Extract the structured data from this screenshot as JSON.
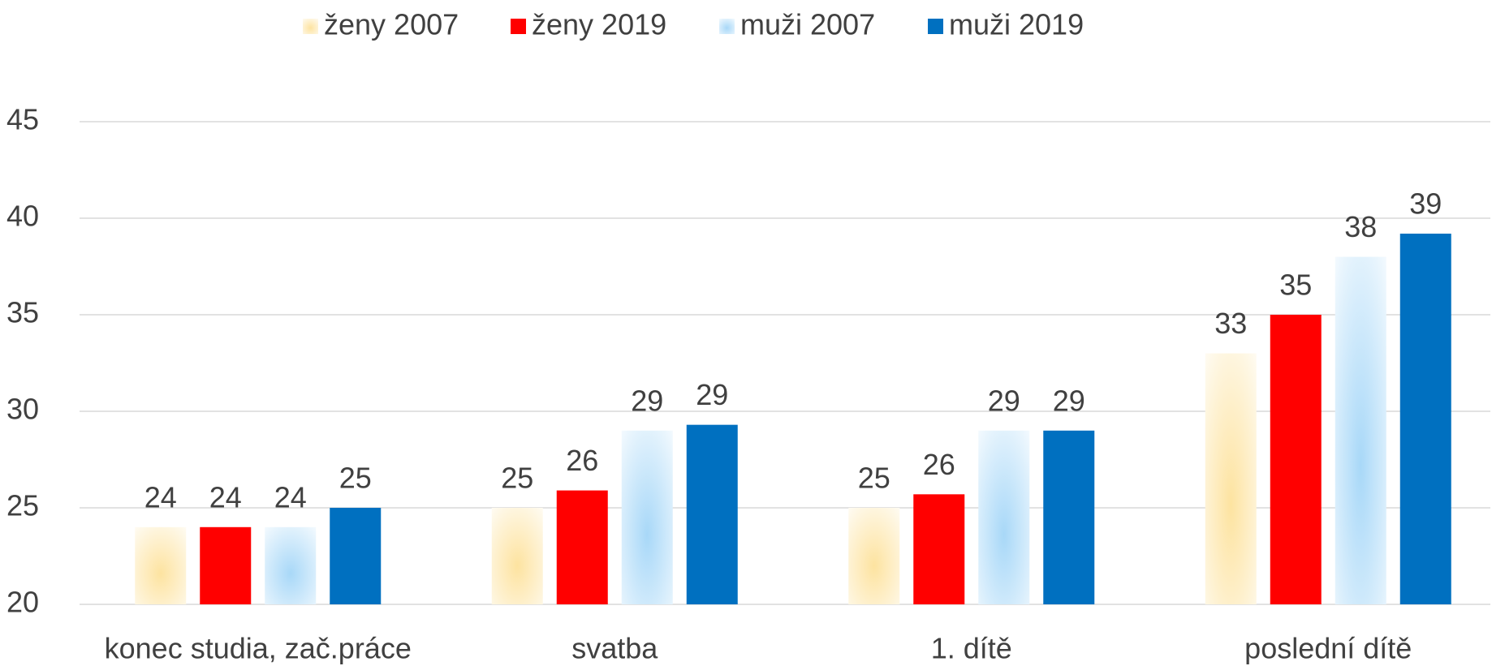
{
  "chart_data": {
    "type": "bar",
    "categories": [
      "konec studia, zač.práce",
      "svatba",
      "1. dítě",
      "poslední dítě"
    ],
    "series": [
      {
        "name": "ženy 2007",
        "color": "#fde3a0",
        "values": [
          24.0,
          25.0,
          25.0,
          33.0
        ],
        "value_labels": [
          "24",
          "25",
          "25",
          "33"
        ]
      },
      {
        "name": "ženy 2019",
        "color": "#ff0000",
        "values": [
          24.0,
          25.9,
          25.7,
          35.0
        ],
        "value_labels": [
          "24",
          "26",
          "26",
          "35"
        ]
      },
      {
        "name": "muži 2007",
        "color": "#a8d8f8",
        "values": [
          24.0,
          29.0,
          29.0,
          38.0
        ],
        "value_labels": [
          "24",
          "29",
          "29",
          "38"
        ]
      },
      {
        "name": "muži 2019",
        "color": "#0070c0",
        "values": [
          25.0,
          29.3,
          29.0,
          39.2
        ],
        "value_labels": [
          "25",
          "29",
          "29",
          "39"
        ]
      }
    ],
    "ylim": [
      20,
      45
    ],
    "yticks": [
      20,
      25,
      30,
      35,
      40,
      45
    ],
    "grid": true,
    "legend": "top"
  }
}
